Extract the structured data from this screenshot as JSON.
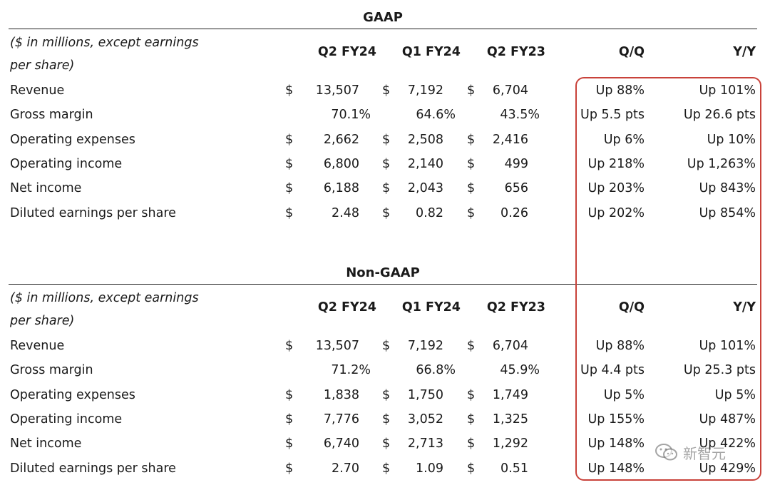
{
  "sections": [
    {
      "title": "GAAP",
      "note": "($ in millions, except earnings per share)",
      "columns": [
        "Q2 FY24",
        "Q1 FY24",
        "Q2 FY23",
        "Q/Q",
        "Y/Y"
      ],
      "rows": [
        {
          "label": "Revenue",
          "c1": "13,507",
          "c2": "7,192",
          "c3": "6,704",
          "qq": "Up 88%",
          "yy": "Up 101%",
          "dollar": "$"
        },
        {
          "label": "Gross margin",
          "c1": "70.1%",
          "c2": "64.6%",
          "c3": "43.5%",
          "qq": "Up 5.5 pts",
          "yy": "Up 26.6 pts",
          "dollar": ""
        },
        {
          "label": "Operating expenses",
          "c1": "2,662",
          "c2": "2,508",
          "c3": "2,416",
          "qq": "Up 6%",
          "yy": "Up 10%",
          "dollar": "$"
        },
        {
          "label": "Operating income",
          "c1": "6,800",
          "c2": "2,140",
          "c3": "499",
          "qq": "Up 218%",
          "yy": "Up 1,263%",
          "dollar": "$"
        },
        {
          "label": "Net income",
          "c1": "6,188",
          "c2": "2,043",
          "c3": "656",
          "qq": "Up 203%",
          "yy": "Up 843%",
          "dollar": "$"
        },
        {
          "label": "Diluted earnings per share",
          "c1": "2.48",
          "c2": "0.82",
          "c3": "0.26",
          "qq": "Up 202%",
          "yy": "Up 854%",
          "dollar": "$"
        }
      ]
    },
    {
      "title": "Non-GAAP",
      "note": "($ in millions, except earnings per share)",
      "columns": [
        "Q2 FY24",
        "Q1 FY24",
        "Q2 FY23",
        "Q/Q",
        "Y/Y"
      ],
      "rows": [
        {
          "label": "Revenue",
          "c1": "13,507",
          "c2": "7,192",
          "c3": "6,704",
          "qq": "Up 88%",
          "yy": "Up 101%",
          "dollar": "$"
        },
        {
          "label": "Gross margin",
          "c1": "71.2%",
          "c2": "66.8%",
          "c3": "45.9%",
          "qq": "Up 4.4 pts",
          "yy": "Up 25.3 pts",
          "dollar": ""
        },
        {
          "label": "Operating expenses",
          "c1": "1,838",
          "c2": "1,750",
          "c3": "1,749",
          "qq": "Up 5%",
          "yy": "Up 5%",
          "dollar": "$"
        },
        {
          "label": "Operating income",
          "c1": "7,776",
          "c2": "3,052",
          "c3": "1,325",
          "qq": "Up 155%",
          "yy": "Up 487%",
          "dollar": "$"
        },
        {
          "label": "Net income",
          "c1": "6,740",
          "c2": "2,713",
          "c3": "1,292",
          "qq": "Up 148%",
          "yy": "Up 422%",
          "dollar": "$"
        },
        {
          "label": "Diluted earnings per share",
          "c1": "2.70",
          "c2": "1.09",
          "c3": "0.51",
          "qq": "Up 148%",
          "yy": "Up 429%",
          "dollar": "$"
        }
      ]
    }
  ],
  "watermark": {
    "text": "新智元",
    "icon": "wechat-icon"
  },
  "colors": {
    "highlight": "#c9423a",
    "text": "#1a1a1a"
  }
}
